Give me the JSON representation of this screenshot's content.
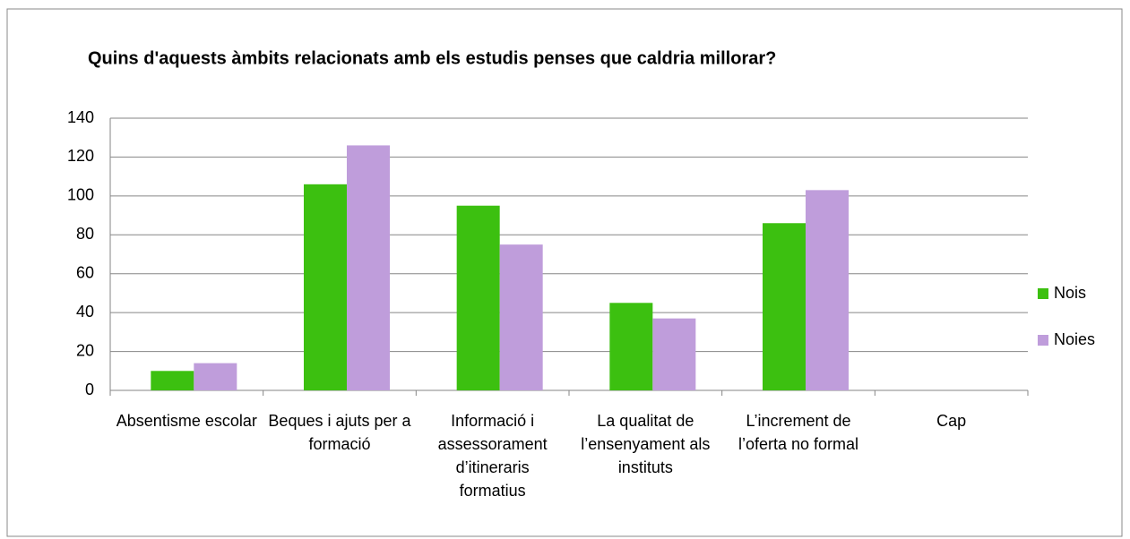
{
  "chart_data": {
    "type": "bar",
    "title": "Quins d'aquests àmbits relacionats amb els estudis penses que caldria millorar?",
    "categories": [
      "Absentisme escolar",
      "Beques i ajuts per a formació",
      "Informació i assessorament d’itineraris formatius",
      "La qualitat de l’ensenyament als instituts",
      "L’increment de l’oferta no formal",
      "Cap"
    ],
    "series": [
      {
        "name": "Nois",
        "color": "#3cc010",
        "values": [
          10,
          106,
          95,
          45,
          86,
          0
        ]
      },
      {
        "name": "Noies",
        "color": "#bf9ddb",
        "values": [
          14,
          126,
          75,
          37,
          103,
          0
        ]
      }
    ],
    "ylim": [
      0,
      140
    ],
    "yticks": [
      0,
      20,
      40,
      60,
      80,
      100,
      120,
      140
    ],
    "grid": true,
    "legend": "right"
  }
}
